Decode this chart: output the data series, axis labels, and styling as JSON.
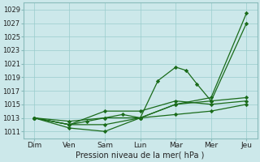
{
  "x_labels": [
    "Dim",
    "Ven",
    "Sam",
    "Lun",
    "Mar",
    "Mer",
    "Jeu"
  ],
  "x_positions": [
    0,
    1,
    2,
    3,
    4,
    5,
    6
  ],
  "yticks": [
    1011,
    1013,
    1015,
    1017,
    1019,
    1021,
    1023,
    1025,
    1027,
    1029
  ],
  "ylim": [
    1010,
    1030
  ],
  "xlabel": "Pression niveau de la mer( hPa )",
  "background_color": "#cce8ea",
  "grid_color": "#99cccc",
  "line_color": "#1a6b1a",
  "series": [
    {
      "x": [
        0,
        1,
        2,
        3,
        4,
        5,
        6
      ],
      "y": [
        1013,
        1012.0,
        1012.0,
        1013.0,
        1015.0,
        1015.5,
        1027.0
      ]
    },
    {
      "x": [
        0,
        1,
        2,
        3,
        4,
        5,
        6
      ],
      "y": [
        1013,
        1011.5,
        1011.0,
        1013.0,
        1015.0,
        1016.0,
        1028.5
      ]
    },
    {
      "x": [
        0,
        1,
        1.5,
        2,
        2.5,
        3,
        3.5,
        4,
        4.3,
        4.6,
        5,
        6
      ],
      "y": [
        1013,
        1012.0,
        1012.5,
        1013.0,
        1013.5,
        1013.0,
        1018.5,
        1020.5,
        1020.0,
        1018.0,
        1015.5,
        1016.0
      ]
    },
    {
      "x": [
        0,
        1,
        2,
        3,
        4,
        5,
        6
      ],
      "y": [
        1013,
        1012.0,
        1014.0,
        1014.0,
        1015.5,
        1015.0,
        1015.5
      ]
    },
    {
      "x": [
        0,
        1,
        2,
        3,
        4,
        5,
        6
      ],
      "y": [
        1013,
        1012.5,
        1013.0,
        1013.0,
        1013.5,
        1014.0,
        1015.0
      ]
    }
  ]
}
